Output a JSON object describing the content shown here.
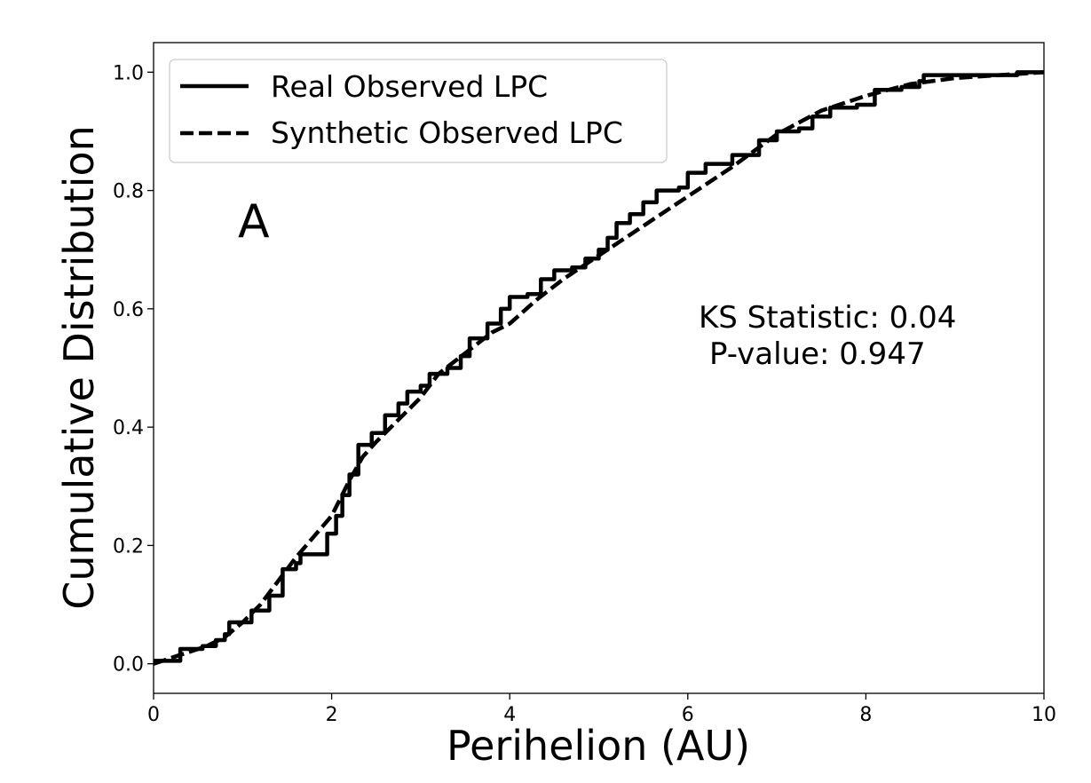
{
  "chart_data": {
    "type": "line",
    "title": "",
    "xlabel": "Perihelion (AU)",
    "ylabel": "Cumulative Distribution",
    "xlim": [
      0,
      10
    ],
    "ylim": [
      -0.05,
      1.05
    ],
    "xticks": [
      0,
      2,
      4,
      6,
      8,
      10
    ],
    "xtick_labels": [
      "0",
      "2",
      "4",
      "6",
      "8",
      "10"
    ],
    "yticks": [
      0.0,
      0.2,
      0.4,
      0.6,
      0.8,
      1.0
    ],
    "ytick_labels": [
      "0.0",
      "0.2",
      "0.4",
      "0.6",
      "0.8",
      "1.0"
    ],
    "grid": false,
    "legend_position": "top-left",
    "series": [
      {
        "name": "Real Observed LPC",
        "style": "solid",
        "color": "#000000",
        "points": [
          [
            0.0,
            0.005
          ],
          [
            0.3,
            0.005
          ],
          [
            0.3,
            0.025
          ],
          [
            0.55,
            0.03
          ],
          [
            0.7,
            0.04
          ],
          [
            0.8,
            0.05
          ],
          [
            0.85,
            0.07
          ],
          [
            1.0,
            0.07
          ],
          [
            1.1,
            0.09
          ],
          [
            1.3,
            0.115
          ],
          [
            1.45,
            0.16
          ],
          [
            1.6,
            0.17
          ],
          [
            1.65,
            0.185
          ],
          [
            1.8,
            0.185
          ],
          [
            1.95,
            0.22
          ],
          [
            2.05,
            0.25
          ],
          [
            2.12,
            0.285
          ],
          [
            2.2,
            0.32
          ],
          [
            2.3,
            0.37
          ],
          [
            2.45,
            0.39
          ],
          [
            2.6,
            0.42
          ],
          [
            2.75,
            0.44
          ],
          [
            2.85,
            0.46
          ],
          [
            3.0,
            0.47
          ],
          [
            3.1,
            0.49
          ],
          [
            3.3,
            0.5
          ],
          [
            3.45,
            0.52
          ],
          [
            3.55,
            0.55
          ],
          [
            3.75,
            0.575
          ],
          [
            3.9,
            0.6
          ],
          [
            4.0,
            0.62
          ],
          [
            4.2,
            0.625
          ],
          [
            4.35,
            0.65
          ],
          [
            4.5,
            0.665
          ],
          [
            4.7,
            0.67
          ],
          [
            4.85,
            0.685
          ],
          [
            5.0,
            0.7
          ],
          [
            5.1,
            0.72
          ],
          [
            5.2,
            0.745
          ],
          [
            5.35,
            0.76
          ],
          [
            5.5,
            0.78
          ],
          [
            5.65,
            0.8
          ],
          [
            5.9,
            0.805
          ],
          [
            6.0,
            0.83
          ],
          [
            6.2,
            0.845
          ],
          [
            6.5,
            0.86
          ],
          [
            6.8,
            0.885
          ],
          [
            7.0,
            0.9
          ],
          [
            7.25,
            0.905
          ],
          [
            7.4,
            0.925
          ],
          [
            7.6,
            0.94
          ],
          [
            7.9,
            0.945
          ],
          [
            8.1,
            0.97
          ],
          [
            8.4,
            0.975
          ],
          [
            8.6,
            0.985
          ],
          [
            8.65,
            0.995
          ],
          [
            9.2,
            0.995
          ],
          [
            9.7,
            1.0
          ],
          [
            10.0,
            1.0
          ]
        ]
      },
      {
        "name": "Synthetic Observed LPC",
        "style": "dashed",
        "color": "#000000",
        "points": [
          [
            0.0,
            0.0
          ],
          [
            0.3,
            0.015
          ],
          [
            0.6,
            0.03
          ],
          [
            0.8,
            0.045
          ],
          [
            1.0,
            0.07
          ],
          [
            1.2,
            0.1
          ],
          [
            1.4,
            0.14
          ],
          [
            1.6,
            0.18
          ],
          [
            1.8,
            0.215
          ],
          [
            2.0,
            0.25
          ],
          [
            2.2,
            0.31
          ],
          [
            2.35,
            0.35
          ],
          [
            2.5,
            0.375
          ],
          [
            2.8,
            0.42
          ],
          [
            3.0,
            0.45
          ],
          [
            3.2,
            0.49
          ],
          [
            3.5,
            0.525
          ],
          [
            3.8,
            0.56
          ],
          [
            4.0,
            0.575
          ],
          [
            4.3,
            0.615
          ],
          [
            4.6,
            0.65
          ],
          [
            5.0,
            0.69
          ],
          [
            5.5,
            0.74
          ],
          [
            6.0,
            0.79
          ],
          [
            6.5,
            0.84
          ],
          [
            7.0,
            0.895
          ],
          [
            7.5,
            0.935
          ],
          [
            8.0,
            0.96
          ],
          [
            8.5,
            0.98
          ],
          [
            9.0,
            0.99
          ],
          [
            9.5,
            0.995
          ],
          [
            10.0,
            1.0
          ]
        ]
      }
    ]
  },
  "legend": [
    {
      "label": "Real Observed LPC",
      "style": "solid"
    },
    {
      "label": "Synthetic Observed LPC",
      "style": "dashed"
    }
  ],
  "annotations": {
    "panel_label": "A",
    "ks_statistic": "KS Statistic: 0.04",
    "p_value": "P-value: 0.947"
  }
}
